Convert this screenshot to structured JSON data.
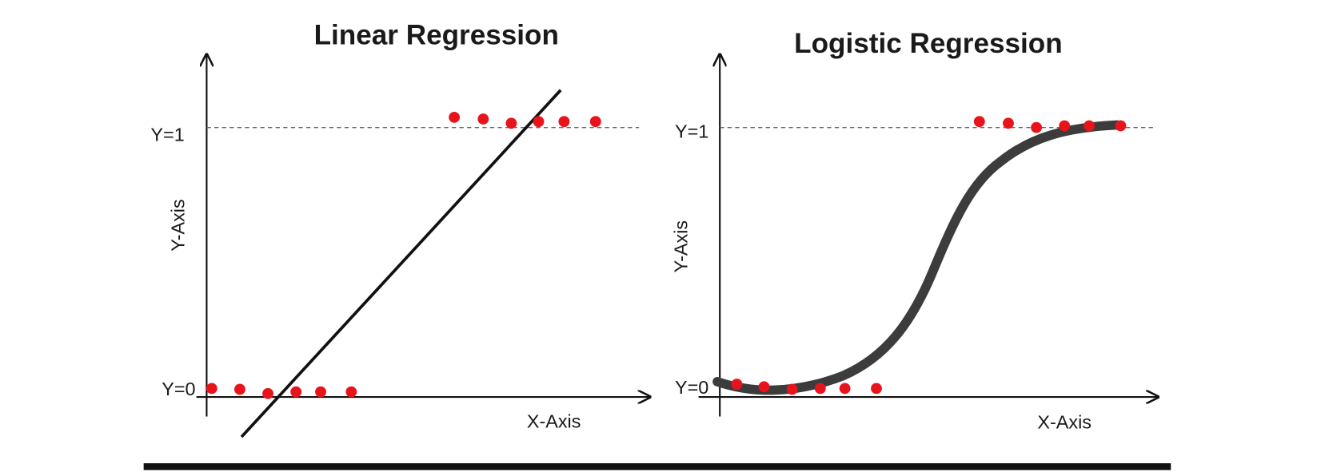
{
  "panels": [
    {
      "title": "Linear Regression",
      "y_axis_label": "Y-Axis",
      "x_axis_label": "X-Axis",
      "y_high_label": "Y=1",
      "y_low_label": "Y=0"
    },
    {
      "title": "Logistic Regression",
      "y_axis_label": "Y-Axis",
      "x_axis_label": "X-Axis",
      "y_high_label": "Y=1",
      "y_low_label": "Y=0"
    }
  ]
}
